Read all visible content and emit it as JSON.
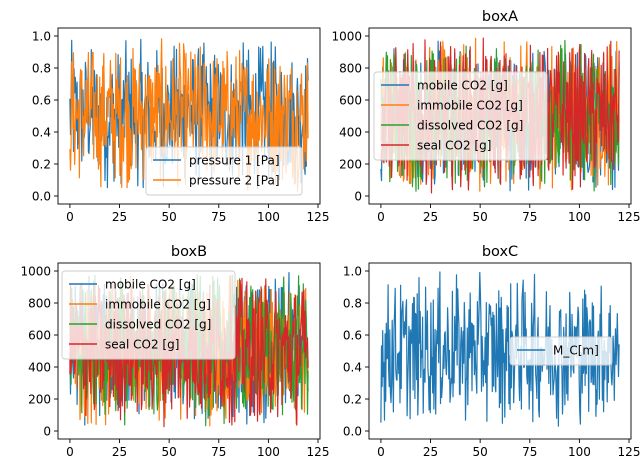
{
  "figure": {
    "background": "#ffffff"
  },
  "chart_data": [
    {
      "type": "line",
      "title": "",
      "xlabel": "",
      "ylabel": "",
      "xlim": [
        -6,
        126
      ],
      "ylim": [
        -0.05,
        1.05
      ],
      "xticks": [
        "0",
        "25",
        "50",
        "75",
        "100",
        "125"
      ],
      "xtick_values": [
        0,
        25,
        50,
        75,
        100,
        125
      ],
      "yticks": [
        "0.0",
        "0.2",
        "0.4",
        "0.6",
        "0.8",
        "1.0"
      ],
      "ytick_values": [
        0,
        0.2,
        0.4,
        0.6,
        0.8,
        1.0
      ],
      "legend_position": "lower-right",
      "noise": {
        "x_range": [
          0,
          120
        ],
        "points": 400,
        "min": 0.02,
        "max": 1.0
      },
      "series": [
        {
          "name": "pressure 1 [Pa]",
          "color": "#1f77b4"
        },
        {
          "name": "pressure 2 [Pa]",
          "color": "#ff7f0e"
        }
      ]
    },
    {
      "type": "line",
      "title": "boxA",
      "xlabel": "",
      "ylabel": "",
      "xlim": [
        -6,
        126
      ],
      "ylim": [
        -50,
        1050
      ],
      "xticks": [
        "0",
        "25",
        "50",
        "75",
        "100",
        "125"
      ],
      "xtick_values": [
        0,
        25,
        50,
        75,
        100,
        125
      ],
      "yticks": [
        "0",
        "200",
        "400",
        "600",
        "800",
        "1000"
      ],
      "ytick_values": [
        0,
        200,
        400,
        600,
        800,
        1000
      ],
      "legend_position": "center-left",
      "noise": {
        "x_range": [
          0,
          120
        ],
        "points": 400,
        "min": 15,
        "max": 995
      },
      "series": [
        {
          "name": "mobile CO2 [g]",
          "color": "#1f77b4"
        },
        {
          "name": "immobile CO2 [g]",
          "color": "#ff7f0e"
        },
        {
          "name": "dissolved CO2 [g]",
          "color": "#2ca02c"
        },
        {
          "name": "seal CO2 [g]",
          "color": "#d62728"
        }
      ]
    },
    {
      "type": "line",
      "title": "boxB",
      "xlabel": "",
      "ylabel": "",
      "xlim": [
        -6,
        126
      ],
      "ylim": [
        -50,
        1050
      ],
      "xticks": [
        "0",
        "25",
        "50",
        "75",
        "100",
        "125"
      ],
      "xtick_values": [
        0,
        25,
        50,
        75,
        100,
        125
      ],
      "yticks": [
        "0",
        "200",
        "400",
        "600",
        "800",
        "1000"
      ],
      "ytick_values": [
        0,
        200,
        400,
        600,
        800,
        1000
      ],
      "legend_position": "upper-left",
      "noise": {
        "x_range": [
          0,
          120
        ],
        "points": 400,
        "min": 15,
        "max": 995
      },
      "series": [
        {
          "name": "mobile CO2 [g]",
          "color": "#1f77b4"
        },
        {
          "name": "immobile CO2 [g]",
          "color": "#ff7f0e"
        },
        {
          "name": "dissolved CO2 [g]",
          "color": "#2ca02c"
        },
        {
          "name": "seal CO2 [g]",
          "color": "#d62728"
        }
      ]
    },
    {
      "type": "line",
      "title": "boxC",
      "xlabel": "",
      "ylabel": "",
      "xlim": [
        -6,
        126
      ],
      "ylim": [
        -0.05,
        1.05
      ],
      "xticks": [
        "0",
        "25",
        "50",
        "75",
        "100",
        "125"
      ],
      "xtick_values": [
        0,
        25,
        50,
        75,
        100,
        125
      ],
      "yticks": [
        "0.0",
        "0.2",
        "0.4",
        "0.6",
        "0.8",
        "1.0"
      ],
      "ytick_values": [
        0,
        0.2,
        0.4,
        0.6,
        0.8,
        1.0
      ],
      "legend_position": "center-right",
      "noise": {
        "x_range": [
          0,
          120
        ],
        "points": 400,
        "min": 0.02,
        "max": 1.0
      },
      "series": [
        {
          "name": "M_C[m]",
          "color": "#1f77b4"
        }
      ]
    }
  ]
}
